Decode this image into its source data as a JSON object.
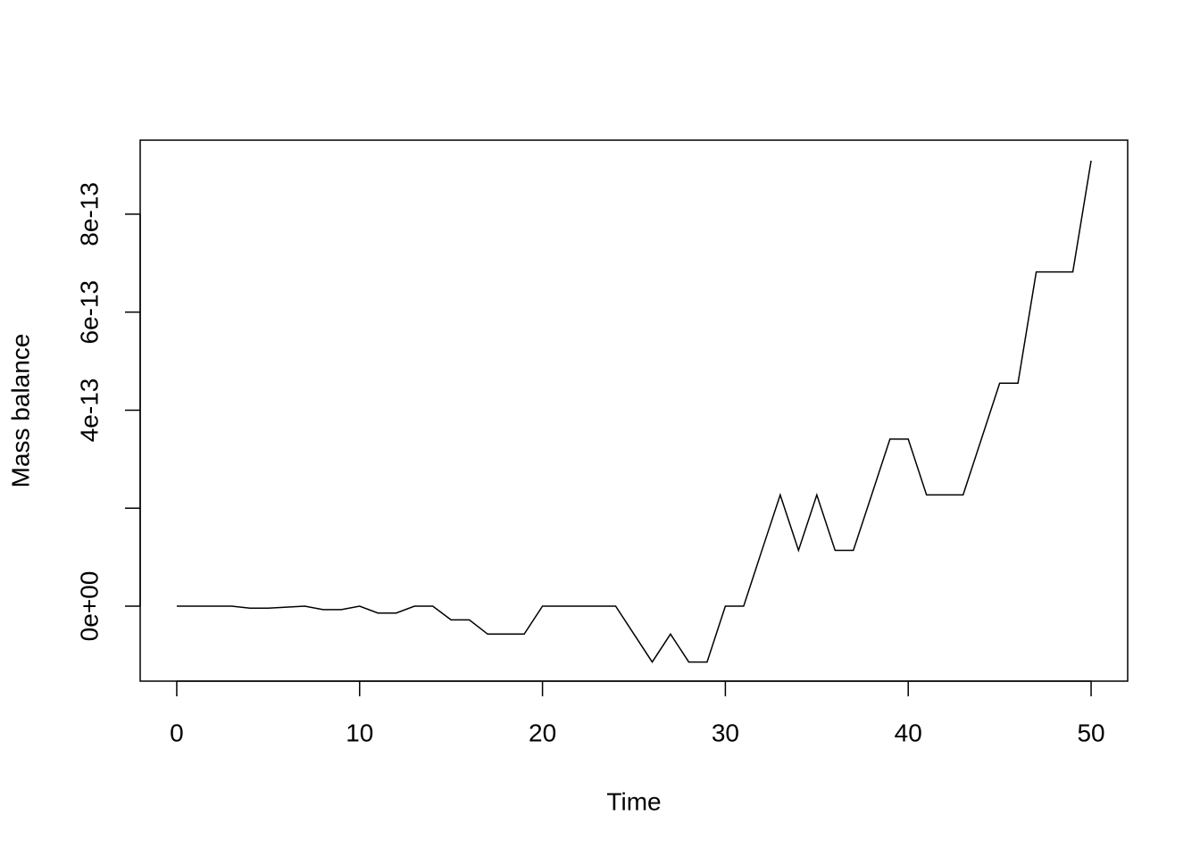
{
  "chart_data": {
    "type": "line",
    "x_label": "Time",
    "y_label": "Mass balance",
    "x": [
      0,
      1,
      2,
      3,
      4,
      5,
      6,
      7,
      8,
      9,
      10,
      11,
      12,
      13,
      14,
      15,
      16,
      17,
      18,
      19,
      20,
      21,
      22,
      23,
      24,
      25,
      26,
      27,
      28,
      29,
      30,
      31,
      32,
      33,
      34,
      35,
      36,
      37,
      38,
      39,
      40,
      41,
      42,
      43,
      44,
      45,
      46,
      47,
      48,
      49,
      50
    ],
    "series": [
      {
        "color": "#000000",
        "values": [
          0,
          0,
          0,
          0,
          -4e-15,
          -4e-15,
          -2e-15,
          0,
          -7e-15,
          -7e-15,
          0,
          -1.4e-14,
          -1.4e-14,
          0,
          0,
          -2.8e-14,
          -2.8e-14,
          -5.7e-14,
          -5.7e-14,
          -5.7e-14,
          0,
          0,
          0,
          0,
          0,
          -5.7e-14,
          -1.14e-13,
          -5.7e-14,
          -1.14e-13,
          -1.14e-13,
          0,
          0,
          1.14e-13,
          2.27e-13,
          1.14e-13,
          2.27e-13,
          1.14e-13,
          1.14e-13,
          2.27e-13,
          3.41e-13,
          3.41e-13,
          2.27e-13,
          2.27e-13,
          2.27e-13,
          3.41e-13,
          4.55e-13,
          4.55e-13,
          6.82e-13,
          6.82e-13,
          6.82e-13,
          9.09e-13
        ]
      }
    ],
    "xlim": [
      -2,
      52
    ],
    "xticks": [
      0,
      10,
      20,
      30,
      40,
      50
    ],
    "ylim": [
      -1.53e-13,
      9.51e-13
    ],
    "yticks": [
      {
        "value": 0,
        "label": "0e+00"
      },
      {
        "value": 2e-13,
        "label": null
      },
      4e-13,
      6e-13,
      8e-13
    ]
  }
}
